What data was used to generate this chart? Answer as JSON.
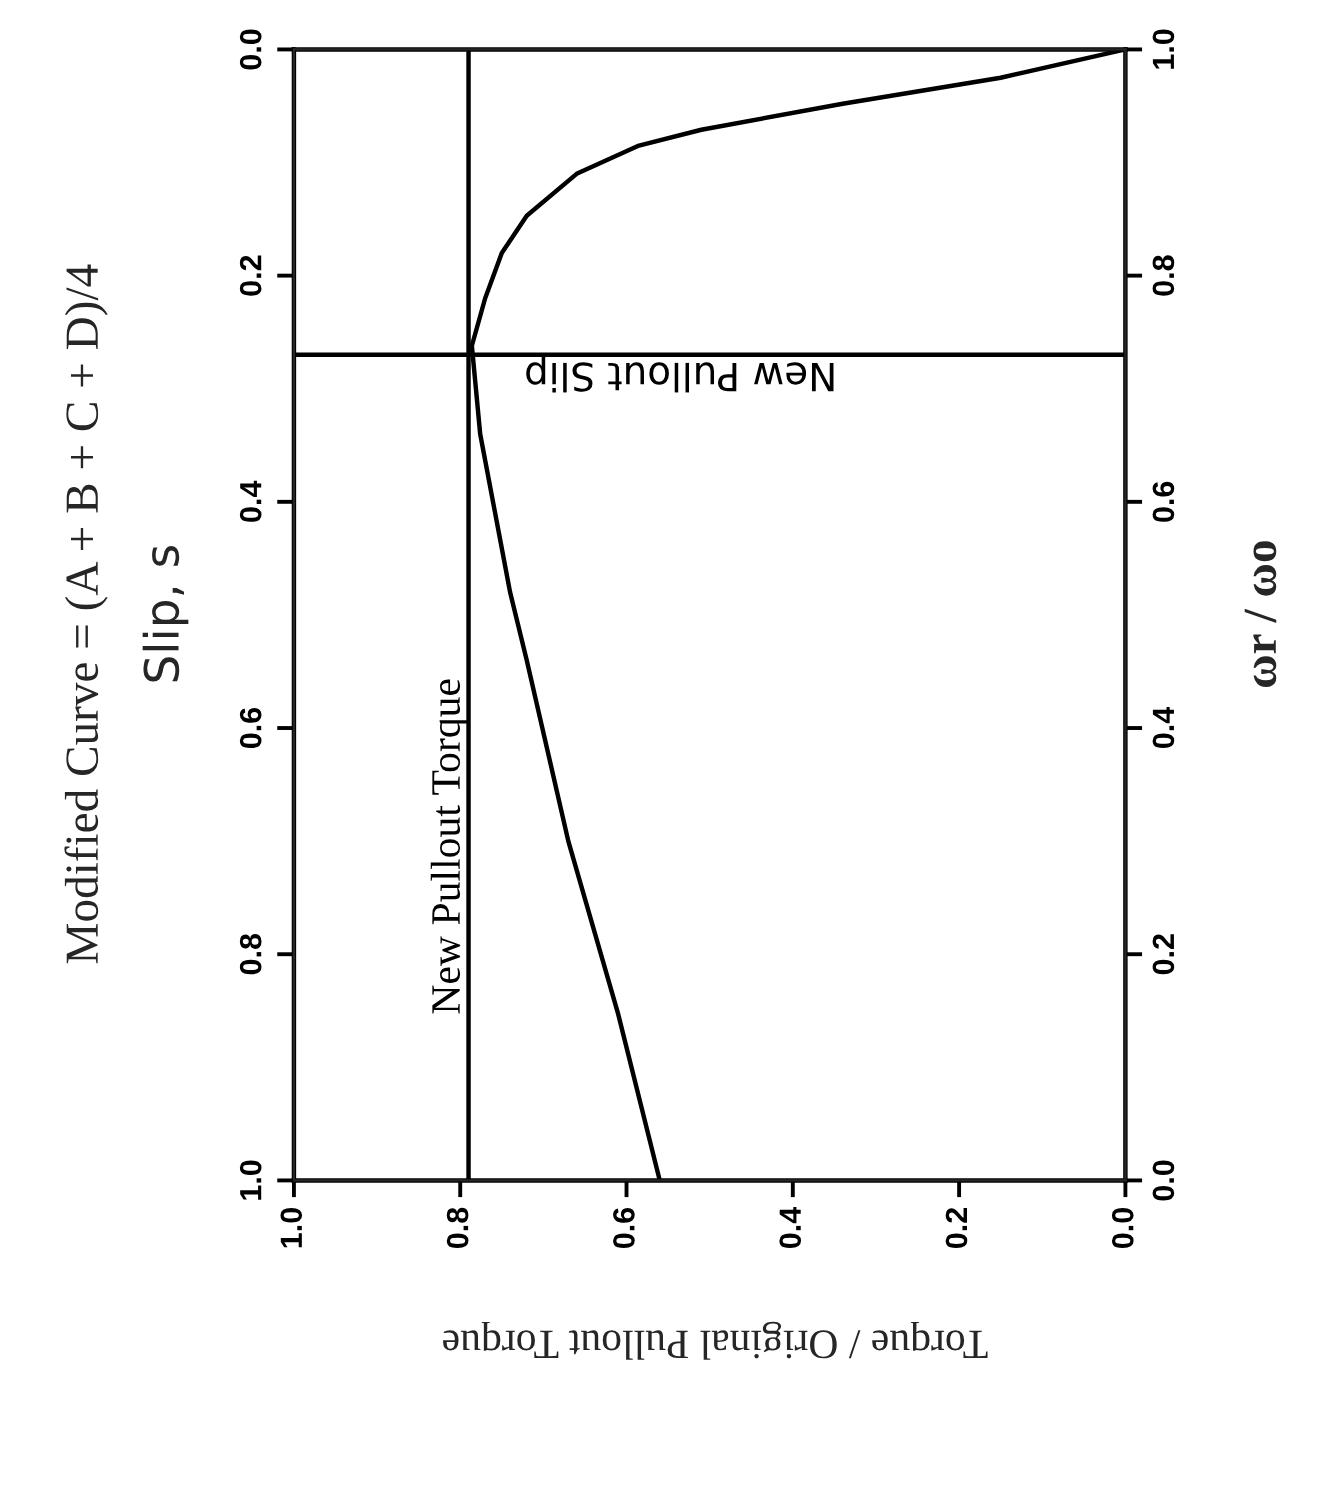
{
  "chart_data": {
    "type": "line",
    "title": "Modified Curve = (A + B + C + D)/4",
    "xlabel": "Torque / Original Pullout Torque",
    "ylabel": "Slip, s",
    "y2label": "ωr / ωo",
    "series": [
      {
        "color": "#000000",
        "x": [
          0.0,
          0.15,
          0.34,
          0.51,
          0.585,
          0.66,
          0.72,
          0.75,
          0.77,
          0.786,
          0.776,
          0.74,
          0.72,
          0.67,
          0.61,
          0.56
        ],
        "values": [
          0.0,
          0.025,
          0.048,
          0.071,
          0.085,
          0.11,
          0.147,
          0.18,
          0.22,
          0.262,
          0.34,
          0.48,
          0.54,
          0.7,
          0.853,
          1.0
        ]
      }
    ],
    "xlim": [
      1.0,
      0.0
    ],
    "xticks": [
      {
        "value": 1.0,
        "label": "1.0"
      },
      0.8,
      0.6,
      0.4,
      0.2,
      {
        "value": 0.0,
        "label": "0.0"
      }
    ],
    "ylim": [
      1.0,
      0.0
    ],
    "yticks": [
      {
        "value": 0.0,
        "label": "0.0"
      },
      0.2,
      0.4,
      0.6,
      0.8,
      {
        "value": 1.0,
        "label": "1.0"
      }
    ],
    "y2lim": [
      0.0,
      1.0
    ],
    "y2ticks": [
      {
        "value": 0.0,
        "label": "0.0"
      },
      0.2,
      0.4,
      0.6,
      0.8,
      {
        "value": 1.0,
        "label": "1.0"
      }
    ],
    "ref_lines": [
      {
        "axis": "x",
        "value": 0.79,
        "label": "New Pullout Torque",
        "color": "#000000"
      },
      {
        "axis": "y",
        "value": 0.27,
        "label": "New Pullout Slip",
        "color": "#000000"
      }
    ],
    "grid": false,
    "legend": false,
    "marker": "none",
    "line_style": "solid"
  }
}
